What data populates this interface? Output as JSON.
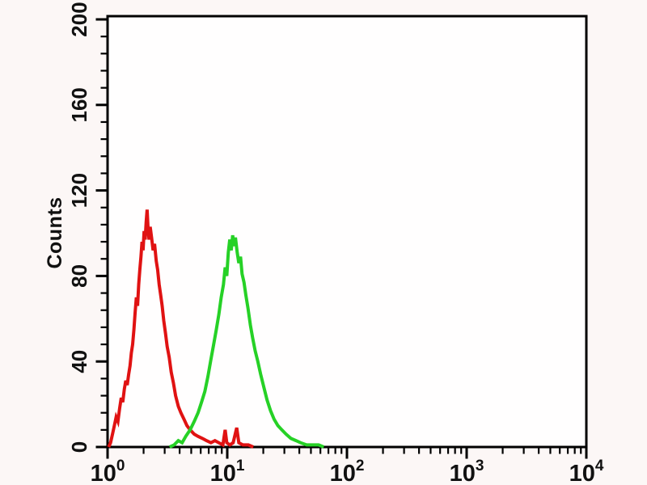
{
  "figure": {
    "background": "#fcf7f6",
    "plot_background": "#fffefe",
    "frame_color": "#000000"
  },
  "chart_data": {
    "type": "line",
    "subtype": "flow-cytometry-histogram-overlay",
    "title": "",
    "xlabel": "",
    "ylabel": "Counts",
    "x_scale": "log10",
    "xlim": [
      1,
      10000
    ],
    "ylim": [
      0,
      200
    ],
    "grid": false,
    "legend": null,
    "x_major_ticks": [
      1,
      10,
      100,
      1000,
      10000
    ],
    "x_tick_labels": [
      {
        "mantissa": "10",
        "exponent": "0"
      },
      {
        "mantissa": "10",
        "exponent": "1"
      },
      {
        "mantissa": "10",
        "exponent": "2"
      },
      {
        "mantissa": "10",
        "exponent": "3"
      },
      {
        "mantissa": "10",
        "exponent": "4"
      }
    ],
    "x_minor_tick_mantissas": [
      2,
      3,
      4,
      5,
      6,
      7,
      8,
      9
    ],
    "y_major_ticks": [
      0,
      40,
      80,
      120,
      160,
      200
    ],
    "y_tick_labels": [
      "0",
      "40",
      "80",
      "120",
      "160",
      "200"
    ],
    "y_minor_step": 8,
    "series": [
      {
        "name": "red-peak",
        "color": "#e01212",
        "peak_x": 2.14,
        "peak_y": 111,
        "points": [
          [
            1.02,
            0
          ],
          [
            1.06,
            2
          ],
          [
            1.1,
            6
          ],
          [
            1.14,
            10
          ],
          [
            1.18,
            14
          ],
          [
            1.22,
            12
          ],
          [
            1.26,
            18
          ],
          [
            1.3,
            23
          ],
          [
            1.34,
            21
          ],
          [
            1.38,
            27
          ],
          [
            1.42,
            31
          ],
          [
            1.46,
            29
          ],
          [
            1.5,
            34
          ],
          [
            1.54,
            38
          ],
          [
            1.58,
            44
          ],
          [
            1.62,
            48
          ],
          [
            1.66,
            55
          ],
          [
            1.7,
            63
          ],
          [
            1.74,
            70
          ],
          [
            1.78,
            66
          ],
          [
            1.82,
            76
          ],
          [
            1.86,
            83
          ],
          [
            1.9,
            89
          ],
          [
            1.94,
            96
          ],
          [
            1.98,
            92
          ],
          [
            2.02,
            101
          ],
          [
            2.06,
            97
          ],
          [
            2.1,
            105
          ],
          [
            2.14,
            111
          ],
          [
            2.18,
            102
          ],
          [
            2.22,
            97
          ],
          [
            2.27,
            103
          ],
          [
            2.33,
            98
          ],
          [
            2.4,
            92
          ],
          [
            2.47,
            95
          ],
          [
            2.55,
            87
          ],
          [
            2.62,
            83
          ],
          [
            2.7,
            76
          ],
          [
            2.78,
            71
          ],
          [
            2.86,
            66
          ],
          [
            2.95,
            59
          ],
          [
            3.05,
            53
          ],
          [
            3.15,
            47
          ],
          [
            3.27,
            42
          ],
          [
            3.4,
            35
          ],
          [
            3.55,
            30
          ],
          [
            3.7,
            24
          ],
          [
            3.9,
            19
          ],
          [
            4.1,
            16
          ],
          [
            4.35,
            13
          ],
          [
            4.6,
            10
          ],
          [
            4.9,
            8
          ],
          [
            5.3,
            6
          ],
          [
            5.7,
            5
          ],
          [
            6.2,
            4
          ],
          [
            6.7,
            3
          ],
          [
            7.3,
            2
          ],
          [
            7.9,
            3
          ],
          [
            8.5,
            2
          ],
          [
            9.2,
            1
          ],
          [
            9.6,
            8
          ],
          [
            9.9,
            2
          ],
          [
            10.5,
            1
          ],
          [
            11.2,
            2
          ],
          [
            12.0,
            9
          ],
          [
            12.5,
            2
          ],
          [
            13.5,
            1
          ],
          [
            15.0,
            1
          ],
          [
            16.5,
            0
          ]
        ]
      },
      {
        "name": "green-peak",
        "color": "#26d126",
        "peak_x": 11.1,
        "peak_y": 99,
        "points": [
          [
            3.3,
            0
          ],
          [
            3.6,
            1
          ],
          [
            3.9,
            3
          ],
          [
            4.2,
            2
          ],
          [
            4.5,
            5
          ],
          [
            4.9,
            8
          ],
          [
            5.3,
            12
          ],
          [
            5.7,
            16
          ],
          [
            6.1,
            21
          ],
          [
            6.5,
            26
          ],
          [
            6.9,
            33
          ],
          [
            7.3,
            41
          ],
          [
            7.7,
            48
          ],
          [
            8.1,
            55
          ],
          [
            8.5,
            62
          ],
          [
            8.9,
            70
          ],
          [
            9.3,
            76
          ],
          [
            9.6,
            84
          ],
          [
            9.9,
            80
          ],
          [
            10.2,
            91
          ],
          [
            10.5,
            97
          ],
          [
            10.8,
            92
          ],
          [
            11.1,
            99
          ],
          [
            11.4,
            94
          ],
          [
            11.7,
            98
          ],
          [
            12.1,
            91
          ],
          [
            12.5,
            86
          ],
          [
            12.9,
            89
          ],
          [
            13.3,
            81
          ],
          [
            13.8,
            77
          ],
          [
            14.3,
            71
          ],
          [
            14.9,
            65
          ],
          [
            15.6,
            57
          ],
          [
            16.3,
            51
          ],
          [
            17.1,
            45
          ],
          [
            18.0,
            40
          ],
          [
            19.0,
            34
          ],
          [
            20.2,
            28
          ],
          [
            21.5,
            22
          ],
          [
            23.0,
            17
          ],
          [
            24.6,
            13
          ],
          [
            26.5,
            10
          ],
          [
            28.6,
            8
          ],
          [
            31.0,
            6
          ],
          [
            34.0,
            4
          ],
          [
            37.5,
            3
          ],
          [
            41.0,
            2
          ],
          [
            46.0,
            1
          ],
          [
            52.0,
            1
          ],
          [
            58.0,
            1
          ],
          [
            64.0,
            0
          ]
        ]
      }
    ]
  }
}
